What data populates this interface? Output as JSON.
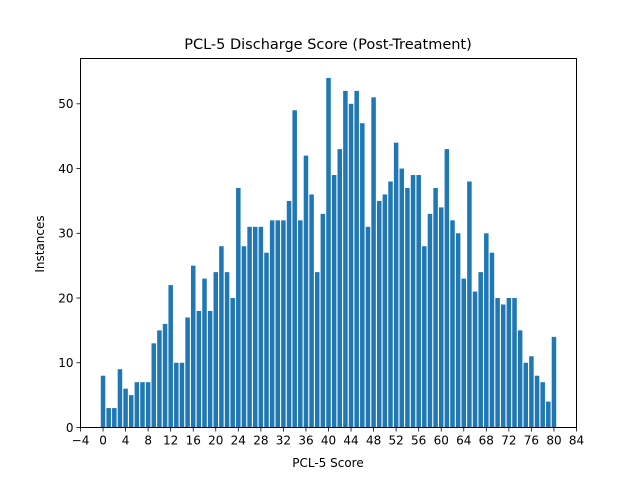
{
  "chart_data": {
    "type": "bar",
    "title": "PCL-5 Discharge Score (Post-Treatment)",
    "xlabel": "PCL-5 Score",
    "ylabel": "Instances",
    "xlim": [
      -4,
      84
    ],
    "ylim": [
      0,
      57
    ],
    "xticks": [
      -4,
      0,
      4,
      8,
      12,
      16,
      20,
      24,
      28,
      32,
      36,
      40,
      44,
      48,
      52,
      56,
      60,
      64,
      68,
      72,
      76,
      80,
      84
    ],
    "yticks": [
      0,
      10,
      20,
      30,
      40,
      50
    ],
    "grid": false,
    "bar_color": "#1f77b4",
    "x": [
      0,
      1,
      2,
      3,
      4,
      5,
      6,
      7,
      8,
      9,
      10,
      11,
      12,
      13,
      14,
      15,
      16,
      17,
      18,
      19,
      20,
      21,
      22,
      23,
      24,
      25,
      26,
      27,
      28,
      29,
      30,
      31,
      32,
      33,
      34,
      35,
      36,
      37,
      38,
      39,
      40,
      41,
      42,
      43,
      44,
      45,
      46,
      47,
      48,
      49,
      50,
      51,
      52,
      53,
      54,
      55,
      56,
      57,
      58,
      59,
      60,
      61,
      62,
      63,
      64,
      65,
      66,
      67,
      68,
      69,
      70,
      71,
      72,
      73,
      74,
      75,
      76,
      77,
      78,
      79,
      80
    ],
    "values": [
      8,
      3,
      3,
      9,
      6,
      5,
      7,
      7,
      7,
      13,
      15,
      16,
      22,
      10,
      10,
      17,
      25,
      18,
      23,
      18,
      24,
      28,
      24,
      20,
      37,
      28,
      31,
      31,
      31,
      27,
      32,
      32,
      32,
      35,
      49,
      32,
      42,
      36,
      24,
      33,
      54,
      39,
      43,
      52,
      50,
      52,
      47,
      31,
      51,
      35,
      36,
      38,
      44,
      40,
      37,
      39,
      39,
      28,
      33,
      37,
      34,
      43,
      32,
      30,
      23,
      38,
      21,
      24,
      30,
      27,
      20,
      19,
      20,
      20,
      15,
      10,
      11,
      8,
      7,
      4,
      14
    ]
  }
}
